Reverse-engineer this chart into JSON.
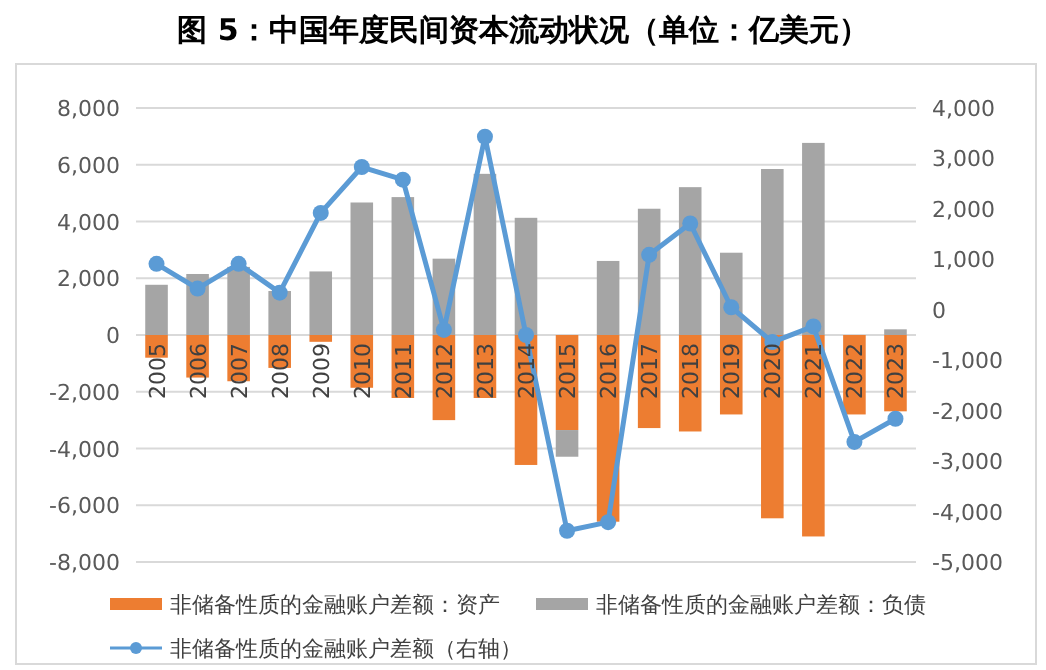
{
  "chart_data": {
    "type": "bar",
    "title": "图 5：中国年度民间资本流动状况（单位：亿美元）",
    "stacked": true,
    "categories": [
      "2005",
      "2006",
      "2007",
      "2008",
      "2009",
      "2010",
      "2011",
      "2012",
      "2013",
      "2014",
      "2015",
      "2016",
      "2017",
      "2018",
      "2019",
      "2020",
      "2021",
      "2022",
      "2023"
    ],
    "series": [
      {
        "name": "非储备性质的金融账户差额：资产",
        "color": "#ed7d31",
        "values": [
          -800,
          -1500,
          -1630,
          -1160,
          -240,
          -1860,
          -2220,
          -3000,
          -2220,
          -4580,
          -3350,
          -6580,
          -3280,
          -3400,
          -2800,
          -6460,
          -7100,
          -2800,
          -2690
        ]
      },
      {
        "name": "非储备性质的金融账户差额：负债",
        "color": "#a5a5a5",
        "values": [
          1770,
          2150,
          2400,
          1550,
          2240,
          4670,
          4860,
          2690,
          5680,
          4130,
          -940,
          2610,
          4450,
          5210,
          2900,
          5850,
          6770,
          0,
          200
        ]
      },
      {
        "name": "非储备性质的金融账户差额（右轴）",
        "type": "line",
        "axis": "y2",
        "color": "#5b9bd5",
        "marker": "circle",
        "values": [
          910,
          420,
          910,
          340,
          1920,
          2830,
          2580,
          -400,
          3430,
          -500,
          -4380,
          -4210,
          1090,
          1710,
          50,
          -640,
          -330,
          -2620,
          -2160
        ]
      }
    ],
    "ylim": [
      -8000,
      8000
    ],
    "yticks": [
      {
        "value": -8000,
        "label": "-8,000"
      },
      {
        "value": -6000,
        "label": "-6,000"
      },
      {
        "value": -4000,
        "label": "-4,000"
      },
      {
        "value": -2000,
        "label": "-2,000"
      },
      0,
      {
        "value": 2000,
        "label": "2,000"
      },
      {
        "value": 4000,
        "label": "4,000"
      },
      {
        "value": 6000,
        "label": "6,000"
      },
      {
        "value": 8000,
        "label": "8,000"
      }
    ],
    "y2lim": [
      -5000,
      4000
    ],
    "y2ticks": [
      {
        "value": -5000,
        "label": "-5,000"
      },
      {
        "value": -4000,
        "label": "-4,000"
      },
      {
        "value": -3000,
        "label": "-3,000"
      },
      {
        "value": -2000,
        "label": "-2,000"
      },
      {
        "value": -1000,
        "label": "-1,000"
      },
      0,
      {
        "value": 1000,
        "label": "1,000"
      },
      {
        "value": 2000,
        "label": "2,000"
      },
      {
        "value": 3000,
        "label": "3,000"
      },
      {
        "value": 4000,
        "label": "4,000"
      }
    ],
    "grid": "y",
    "legend": "bottom"
  }
}
